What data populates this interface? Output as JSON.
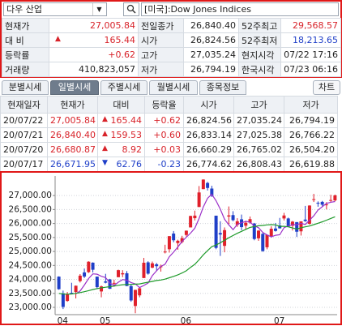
{
  "search": {
    "query": "다우 산업",
    "market": "[미국]:Dow Jones Indices"
  },
  "quote": {
    "rows": [
      {
        "label": "현재가",
        "value": "27,005.84",
        "label2": "전일종가",
        "value2": "26,840.40",
        "label3": "52주최고",
        "value3": "29,568.57"
      },
      {
        "label": "대 비",
        "arrow": "▲",
        "value": "165.44",
        "label2": "시가",
        "value2": "26,824.56",
        "label3": "52주최저",
        "value3": "18,213.65"
      },
      {
        "label": "등락률",
        "value": "+0.62",
        "label2": "고가",
        "value2": "27,035.24",
        "label3": "현지시각",
        "value3": "07/22 17:16"
      },
      {
        "label": "거래량",
        "value": "410,823,057",
        "label2": "저가",
        "value2": "26,794.19",
        "label3": "한국시각",
        "value3": "07/23 06:16"
      }
    ]
  },
  "tabs": [
    "분별시세",
    "일별시세",
    "주별시세",
    "월별시세",
    "종목정보"
  ],
  "chart_button": "차트",
  "daily": {
    "headers": [
      "현재일자",
      "현재가",
      "대비",
      "등락율",
      "시가",
      "고가",
      "저가"
    ],
    "rows": [
      {
        "date": "20/07/22",
        "close": "27,005.84",
        "arrow": "▲",
        "change": "165.44",
        "rate": "+0.62",
        "open": "26,824.56",
        "high": "27,035.24",
        "low": "26,794.19",
        "color": "#d8232a"
      },
      {
        "date": "20/07/21",
        "close": "26,840.40",
        "arrow": "▲",
        "change": "159.53",
        "rate": "+0.60",
        "open": "26,833.14",
        "high": "27,025.38",
        "low": "26,766.22",
        "color": "#d8232a"
      },
      {
        "date": "20/07/20",
        "close": "26,680.87",
        "arrow": "▲",
        "change": "8.92",
        "rate": "+0.03",
        "open": "26,660.29",
        "high": "26,765.02",
        "low": "26,504.20",
        "color": "#d8232a"
      },
      {
        "date": "20/07/17",
        "close": "26,671.95",
        "arrow": "▼",
        "change": "62.76",
        "rate": "-0.23",
        "open": "26,774.62",
        "high": "26,808.43",
        "low": "26,619.88",
        "color": "#1f3fc8"
      }
    ]
  },
  "chart_data": {
    "type": "candlestick",
    "up_color": "#e0202b",
    "down_color": "#1f3fc8",
    "ylim": [
      22740,
      27700
    ],
    "yticks": [
      {
        "value": 23000,
        "label": "23,000.00"
      },
      {
        "value": 23500,
        "label": "23,500.00"
      },
      {
        "value": 24000,
        "label": "24,000.00"
      },
      {
        "value": 24500,
        "label": "24,500.00"
      },
      {
        "value": 25000,
        "label": "25,000.00"
      },
      {
        "value": 25500,
        "label": "25,500.00"
      },
      {
        "value": 26000,
        "label": "26,000.00"
      },
      {
        "value": 26500,
        "label": "26,500.00"
      },
      {
        "value": 27000,
        "label": "27,000.00"
      }
    ],
    "grid": true,
    "categories": [
      "04",
      null,
      null,
      null,
      null,
      null,
      null,
      null,
      null,
      null,
      "05",
      null,
      null,
      null,
      null,
      null,
      null,
      null,
      null,
      null,
      null,
      null,
      null,
      null,
      null,
      null,
      null,
      null,
      null,
      "06",
      null,
      null,
      null,
      null,
      null,
      null,
      null,
      null,
      null,
      null,
      null,
      null,
      null,
      null,
      null,
      null,
      null,
      null,
      null,
      null,
      null,
      "07",
      null,
      null,
      null,
      null,
      null,
      null,
      null,
      null,
      null,
      null,
      null,
      null,
      null,
      null
    ],
    "open": [
      24100,
      23500,
      23230,
      23520,
      23550,
      23940,
      24250,
      24260,
      24600,
      24100,
      23570,
      23930,
      24000,
      23860,
      24080,
      24180,
      24220,
      23760,
      23050,
      23430,
      24050,
      24610,
      24420,
      24540,
      24440,
      24990,
      25080,
      25640,
      25300,
      25340,
      25590,
      25860,
      26190,
      26590,
      27230,
      27450,
      27250,
      26280,
      25660,
      25200,
      26250,
      26300,
      25950,
      26150,
      25920,
      26030,
      26000,
      25470,
      25630,
      25150,
      25540,
      25820,
      25930,
      26180,
      26180,
      25920,
      26050,
      25720,
      26140,
      25990,
      26860,
      26740,
      26775,
      26660,
      26833,
      26825
    ],
    "high": [
      24110,
      23600,
      23550,
      23880,
      23780,
      24190,
      24390,
      24650,
      24610,
      24100,
      23780,
      24200,
      24020,
      23990,
      24350,
      24330,
      24300,
      23840,
      23630,
      23690,
      24770,
      24650,
      24640,
      24590,
      24530,
      25240,
      25550,
      25730,
      25420,
      25560,
      25750,
      26280,
      26460,
      27340,
      27580,
      27490,
      27350,
      26280,
      26080,
      25860,
      26610,
      26440,
      26190,
      26320,
      26100,
      26250,
      26020,
      25760,
      25660,
      25600,
      25900,
      26020,
      26200,
      26380,
      26210,
      26090,
      26050,
      26080,
      26630,
      26650,
      27060,
      26790,
      26808,
      26765,
      27025,
      27035
    ],
    "low": [
      23630,
      22940,
      23200,
      23470,
      23320,
      23890,
      24050,
      24230,
      24250,
      23660,
      23360,
      23860,
      23660,
      23740,
      24080,
      24080,
      23760,
      23200,
      22790,
      23360,
      24050,
      24170,
      24400,
      24300,
      24280,
      24930,
      24960,
      25330,
      25060,
      25290,
      25540,
      25860,
      26110,
      26590,
      27230,
      27180,
      26950,
      25080,
      24840,
      24970,
      25980,
      26080,
      25880,
      25760,
      25780,
      26000,
      25400,
      25380,
      24990,
      25080,
      25500,
      25710,
      25820,
      26110,
      25890,
      25750,
      25520,
      25570,
      26060,
      25960,
      26770,
      26600,
      26620,
      26504,
      26766,
      26794
    ],
    "close": [
      23650,
      23018,
      23475,
      23515,
      23775,
      24134,
      24101,
      24634,
      24346,
      23724,
      23750,
      23883,
      23665,
      23876,
      24331,
      24222,
      23765,
      23248,
      23625,
      23685,
      24597,
      24207,
      24576,
      24474,
      24465,
      24995,
      25548,
      25401,
      25383,
      25475,
      25743,
      26270,
      26282,
      27111,
      27572,
      27272,
      26990,
      25128,
      25606,
      25763,
      26290,
      26120,
      26080,
      25871,
      26025,
      26156,
      25446,
      25746,
      25016,
      25596,
      25813,
      25735,
      25827,
      26287,
      25891,
      26067,
      25706,
      26075,
      26086,
      26643,
      26870,
      26735,
      26672,
      26681,
      26840,
      27006
    ],
    "series": [
      {
        "color": "#9b30c8",
        "values": [
          null,
          null,
          null,
          null,
          23487,
          23583,
          23800,
          24032,
          24198,
          24188,
          24111,
          24067,
          23874,
          23780,
          23901,
          23995,
          23972,
          23888,
          23838,
          23709,
          23784,
          23872,
          24138,
          24308,
          24464,
          24543,
          24812,
          24977,
          25158,
          25360,
          25510,
          25654,
          25831,
          26176,
          26596,
          26901,
          27045,
          26815,
          26514,
          26152,
          25955,
          25781,
          25972,
          26025,
          26077,
          26050,
          25916,
          25849,
          25678,
          25592,
          25523,
          25581,
          25597,
          25852,
          25911,
          25961,
          25956,
          26005,
          25965,
          26115,
          26276,
          26482,
          26601,
          26720,
          26760,
          26787
        ]
      },
      {
        "color": "#1e9a2a",
        "values": [
          23500,
          23480,
          23470,
          23480,
          23500,
          23530,
          23560,
          23600,
          23640,
          23670,
          23700,
          23720,
          23740,
          23760,
          23790,
          23810,
          23820,
          23820,
          23830,
          23840,
          23870,
          23900,
          23930,
          23960,
          23980,
          24010,
          24060,
          24110,
          24160,
          24230,
          24310,
          24430,
          24540,
          24700,
          24880,
          25030,
          25170,
          25230,
          25310,
          25400,
          25490,
          25570,
          25650,
          25720,
          25790,
          25860,
          25890,
          25920,
          25930,
          25950,
          25960,
          25950,
          25900,
          25900,
          25880,
          25840,
          25800,
          25850,
          25880,
          25910,
          25960,
          26010,
          26060,
          26120,
          26180,
          26240
        ]
      }
    ]
  }
}
